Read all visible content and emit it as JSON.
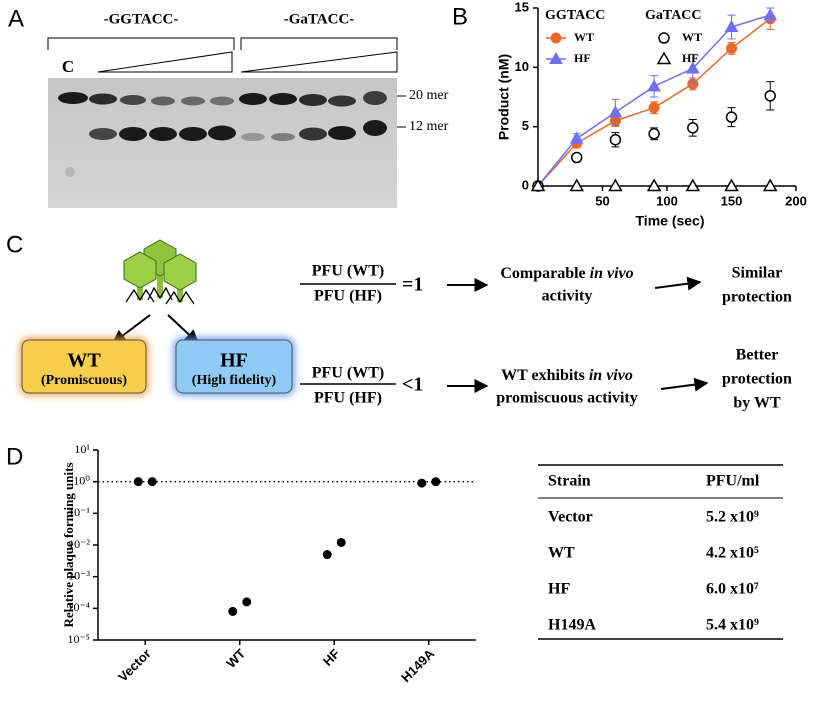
{
  "panels": {
    "a": "A",
    "b": "B",
    "c": "C",
    "d": "D"
  },
  "gel": {
    "top_labels": [
      "-GGTACC-",
      "-GaTACC-"
    ],
    "control": "C",
    "band_labels": [
      "20 mer",
      "12 mer"
    ]
  },
  "diagram": {
    "boxes": [
      {
        "title": "WT",
        "subtitle": "(Promiscuous)"
      },
      {
        "title": "HF",
        "subtitle": "(High fidelity)"
      }
    ],
    "rows": [
      {
        "numerator": "PFU (WT)",
        "denominator": "PFU (HF)",
        "relation": "=1",
        "effect_pre": "Comparable ",
        "effect_em": "in vivo",
        "effect_line2": "activity",
        "outcome": [
          "Similar",
          "protection"
        ]
      },
      {
        "numerator": "PFU (WT)",
        "denominator": "PFU (HF)",
        "relation": "<1",
        "effect_pre": "WT exhibits ",
        "effect_em": "in vivo",
        "effect_line2": "promiscuous activity",
        "outcome": [
          "Better",
          "protection",
          "by WT"
        ]
      }
    ]
  },
  "chart_data": [
    {
      "type": "line",
      "xlabel": "Time (sec)",
      "ylabel": "Product (nM)",
      "x": [
        0,
        30,
        60,
        90,
        120,
        150,
        180
      ],
      "xlim": [
        0,
        200
      ],
      "xticks": [
        50,
        100,
        150,
        200
      ],
      "ylim": [
        0,
        15
      ],
      "yticks": [
        0,
        5,
        10,
        15
      ],
      "legend_titles": [
        "GGTACC",
        "GaTACC"
      ],
      "series": [
        {
          "name": "WT",
          "color": "#e8692a",
          "marker": "circle",
          "filled": true,
          "line": true,
          "values": [
            0,
            3.6,
            5.5,
            6.6,
            8.6,
            11.6,
            14.1
          ],
          "errors": [
            0,
            0.4,
            0.5,
            0.5,
            0.5,
            0.5,
            0.9
          ]
        },
        {
          "name": "HF",
          "color": "#6f6ff0",
          "marker": "triangle",
          "filled": true,
          "line": true,
          "values": [
            0,
            4.0,
            6.2,
            8.4,
            9.9,
            13.4,
            14.4
          ],
          "errors": [
            0,
            0.4,
            1.1,
            0.9,
            1.2,
            1.0,
            0.6
          ]
        },
        {
          "name": "WT",
          "color": "#000000",
          "marker": "circle",
          "filled": false,
          "line": false,
          "values": [
            0,
            2.4,
            3.9,
            4.4,
            4.9,
            5.8,
            7.6
          ],
          "errors": [
            0,
            0.3,
            0.6,
            0.5,
            0.7,
            0.8,
            1.2
          ]
        },
        {
          "name": "HF",
          "color": "#000000",
          "marker": "triangle",
          "filled": false,
          "line": false,
          "values": [
            0,
            0,
            0,
            0,
            0,
            0,
            0
          ],
          "errors": [
            0,
            0,
            0,
            0,
            0,
            0,
            0
          ]
        }
      ]
    },
    {
      "type": "scatter",
      "ylabel": "Relative plaque forming units",
      "log_y": true,
      "categories": [
        "Vector",
        "WT",
        "HF",
        "H149A"
      ],
      "values": [
        [
          1,
          1
        ],
        [
          8e-05,
          0.00016
        ],
        [
          0.005,
          0.012
        ],
        [
          0.9,
          1
        ]
      ],
      "color": "#000000",
      "reference_line": 1,
      "ylim": [
        1e-05,
        10
      ],
      "yticks": [
        {
          "value": 1e-05,
          "label": "10⁻⁵"
        },
        {
          "value": 0.0001,
          "label": "10⁻⁴"
        },
        {
          "value": 0.001,
          "label": "10⁻³"
        },
        {
          "value": 0.01,
          "label": "10⁻²"
        },
        {
          "value": 0.1,
          "label": "10⁻¹"
        },
        {
          "value": 1,
          "label": "10⁰"
        },
        {
          "value": 10,
          "label": "10¹"
        }
      ]
    }
  ],
  "table": {
    "header": [
      "Strain",
      "PFU/ml"
    ],
    "rows": [
      [
        "Vector",
        "5.2 x10⁹"
      ],
      [
        "WT",
        "4.2 x10⁵"
      ],
      [
        "HF",
        "6.0 x10⁷"
      ],
      [
        "H149A",
        "5.4 x10⁹"
      ]
    ]
  }
}
